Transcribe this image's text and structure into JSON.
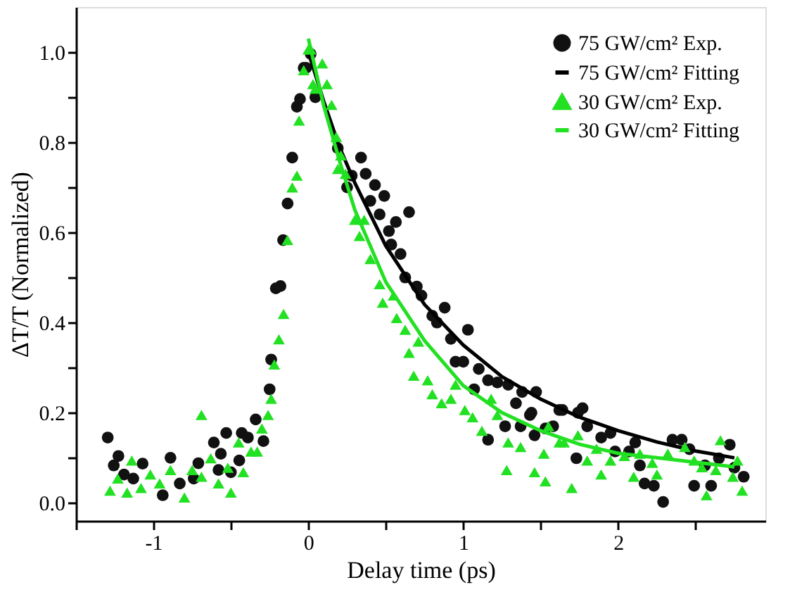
{
  "chart_data": {
    "type": "scatter",
    "xlabel": "Delay time (ps)",
    "ylabel": "ΔT/T (Normalized)",
    "xlim": [
      -1.5,
      2.95
    ],
    "ylim": [
      -0.04,
      1.1
    ],
    "xticks": [
      {
        "value": -1.5,
        "label": null
      },
      -1,
      {
        "value": -0.5,
        "label": null
      },
      0,
      {
        "value": 0.5,
        "label": null
      },
      1,
      {
        "value": 1.5,
        "label": null
      },
      2,
      {
        "value": 2.5,
        "label": null
      }
    ],
    "yticks": [
      {
        "value": 0,
        "label": "0.0"
      },
      {
        "value": 0.1,
        "label": null
      },
      {
        "value": 0.2,
        "label": "0.2"
      },
      {
        "value": 0.3,
        "label": null
      },
      {
        "value": 0.4,
        "label": "0.4"
      },
      {
        "value": 0.5,
        "label": null
      },
      {
        "value": 0.6,
        "label": "0.6"
      },
      {
        "value": 0.7,
        "label": null
      },
      {
        "value": 0.8,
        "label": "0.8"
      },
      {
        "value": 0.9,
        "label": null
      },
      {
        "value": 1.0,
        "label": "1.0"
      }
    ],
    "grid": false,
    "legend": "top right",
    "series": [
      {
        "name": "75 GW/cm² Exp.",
        "marker": "circle",
        "color": "#111111",
        "x": [
          -1.295,
          -1.226,
          -1.256,
          -1.19,
          -1.07,
          -1.13,
          -0.89,
          -0.94,
          -0.83,
          -0.74,
          -0.71,
          -0.61,
          -0.565,
          -0.53,
          -0.58,
          -0.5,
          -0.43,
          -0.39,
          -0.446,
          -0.34,
          -0.29,
          -0.25,
          -0.24,
          -0.21,
          -0.18,
          -0.163,
          -0.134,
          -0.104,
          -0.074,
          -0.054,
          -0.03,
          0.015,
          -0.015,
          0.045,
          0.19,
          0.34,
          0.28,
          0.25,
          0.37,
          0.43,
          0.49,
          0.4,
          0.46,
          0.65,
          0.565,
          0.52,
          0.535,
          0.595,
          0.625,
          0.7,
          0.73,
          0.8,
          0.88,
          0.83,
          1.03,
          0.92,
          0.95,
          1.0,
          1.1,
          1.07,
          1.16,
          1.22,
          1.29,
          1.38,
          1.47,
          1.34,
          1.43,
          1.37,
          1.16,
          1.27,
          1.53,
          1.58,
          1.64,
          1.46,
          1.44,
          1.62,
          1.77,
          1.74,
          1.8,
          1.89,
          1.95,
          1.98,
          2.07,
          2.11,
          1.73,
          2.17,
          2.23,
          2.29,
          2.14,
          2.35,
          2.41,
          2.46,
          2.49,
          2.6,
          2.65,
          2.72,
          2.75,
          2.81,
          2.56
        ],
        "values": [
          0.145,
          0.104,
          0.083,
          0.063,
          0.087,
          0.054,
          0.1,
          0.017,
          0.043,
          0.054,
          0.088,
          0.134,
          0.109,
          0.155,
          0.073,
          0.068,
          0.155,
          0.145,
          0.094,
          0.185,
          0.137,
          0.252,
          0.318,
          0.476,
          0.481,
          0.583,
          0.664,
          0.766,
          0.879,
          0.896,
          0.965,
          0.996,
          0.965,
          0.9,
          0.787,
          0.766,
          0.726,
          0.7,
          0.73,
          0.705,
          0.681,
          0.67,
          0.64,
          0.645,
          0.623,
          0.603,
          0.573,
          0.552,
          0.5,
          0.48,
          0.46,
          0.415,
          0.433,
          0.4,
          0.384,
          0.364,
          0.313,
          0.313,
          0.297,
          0.252,
          0.272,
          0.267,
          0.262,
          0.246,
          0.246,
          0.221,
          0.195,
          0.17,
          0.14,
          0.17,
          0.165,
          0.17,
          0.206,
          0.15,
          0.2,
          0.206,
          0.21,
          0.2,
          0.17,
          0.145,
          0.155,
          0.114,
          0.114,
          0.134,
          0.099,
          0.043,
          0.038,
          0.002,
          0.083,
          0.14,
          0.14,
          0.119,
          0.038,
          0.038,
          0.099,
          0.129,
          0.078,
          0.058,
          0.083
        ]
      },
      {
        "name": "75 GW/cm² Fitting",
        "type": "line",
        "line_style": "solid",
        "color": "#000000",
        "x": [
          0,
          0.1,
          0.2,
          0.3,
          0.5,
          0.75,
          1.0,
          1.25,
          1.5,
          1.75,
          2.0,
          2.25,
          2.5,
          2.75
        ],
        "values": [
          1.0,
          0.89,
          0.79,
          0.71,
          0.57,
          0.44,
          0.35,
          0.28,
          0.23,
          0.19,
          0.16,
          0.135,
          0.115,
          0.1
        ]
      },
      {
        "name": "30 GW/cm² Exp.",
        "marker": "triangle",
        "color": "#22e022",
        "x": [
          -1.28,
          -1.23,
          -1.14,
          -1.17,
          -1.08,
          -1.02,
          -0.96,
          -0.89,
          -0.8,
          -0.75,
          -0.69,
          -0.69,
          -0.63,
          -0.58,
          -0.52,
          -0.5,
          -0.45,
          -0.42,
          -0.37,
          -0.33,
          -0.3,
          -0.26,
          -0.24,
          -0.22,
          -0.19,
          -0.16,
          -0.135,
          -0.104,
          -0.074,
          -0.06,
          -0.03,
          0.0,
          0.03,
          0.015,
          0.09,
          0.045,
          0.12,
          0.15,
          0.18,
          0.21,
          0.19,
          0.24,
          0.3,
          0.36,
          0.33,
          0.4,
          0.46,
          0.48,
          0.55,
          0.57,
          0.625,
          0.65,
          0.71,
          0.68,
          0.77,
          0.8,
          0.86,
          0.95,
          0.92,
          1.01,
          1.06,
          1.12,
          1.18,
          1.22,
          1.29,
          1.37,
          1.28,
          1.46,
          1.53,
          1.52,
          1.62,
          1.55,
          1.65,
          1.7,
          1.74,
          1.8,
          1.89,
          1.86,
          1.95,
          2.04,
          2.1,
          2.14,
          2.22,
          2.25,
          2.32,
          2.43,
          2.49,
          2.57,
          2.54,
          2.63,
          2.66,
          2.74,
          2.8,
          2.77
        ],
        "values": [
          0.027,
          0.054,
          0.094,
          0.023,
          0.033,
          0.063,
          0.043,
          0.073,
          0.012,
          0.073,
          0.195,
          0.058,
          0.099,
          0.043,
          0.078,
          0.023,
          0.134,
          0.068,
          0.114,
          0.114,
          0.165,
          0.195,
          0.231,
          0.307,
          0.363,
          0.419,
          0.583,
          0.7,
          0.726,
          0.848,
          0.96,
          1.006,
          0.929,
          1.006,
          0.975,
          0.919,
          0.929,
          0.883,
          0.812,
          0.771,
          0.741,
          0.73,
          0.628,
          0.628,
          0.592,
          0.541,
          0.485,
          0.444,
          0.46,
          0.41,
          0.384,
          0.333,
          0.358,
          0.282,
          0.272,
          0.241,
          0.221,
          0.262,
          0.231,
          0.206,
          0.19,
          0.16,
          0.231,
          0.195,
          0.134,
          0.124,
          0.073,
          0.068,
          0.048,
          0.109,
          0.134,
          0.17,
          0.134,
          0.033,
          0.15,
          0.094,
          0.063,
          0.12,
          0.094,
          0.104,
          0.058,
          0.109,
          0.089,
          0.063,
          0.109,
          0.124,
          0.094,
          0.017,
          0.079,
          0.073,
          0.139,
          0.058,
          0.027,
          0.094
        ]
      },
      {
        "name": "30 GW/cm² Fitting",
        "type": "line",
        "line_style": "solid",
        "color": "#22e022",
        "x": [
          0,
          0.1,
          0.2,
          0.3,
          0.5,
          0.75,
          1.0,
          1.25,
          1.5,
          1.75,
          2.0,
          2.25,
          2.5,
          2.75
        ],
        "values": [
          1.03,
          0.88,
          0.76,
          0.65,
          0.49,
          0.36,
          0.26,
          0.2,
          0.16,
          0.13,
          0.11,
          0.1,
          0.09,
          0.08
        ]
      }
    ]
  }
}
